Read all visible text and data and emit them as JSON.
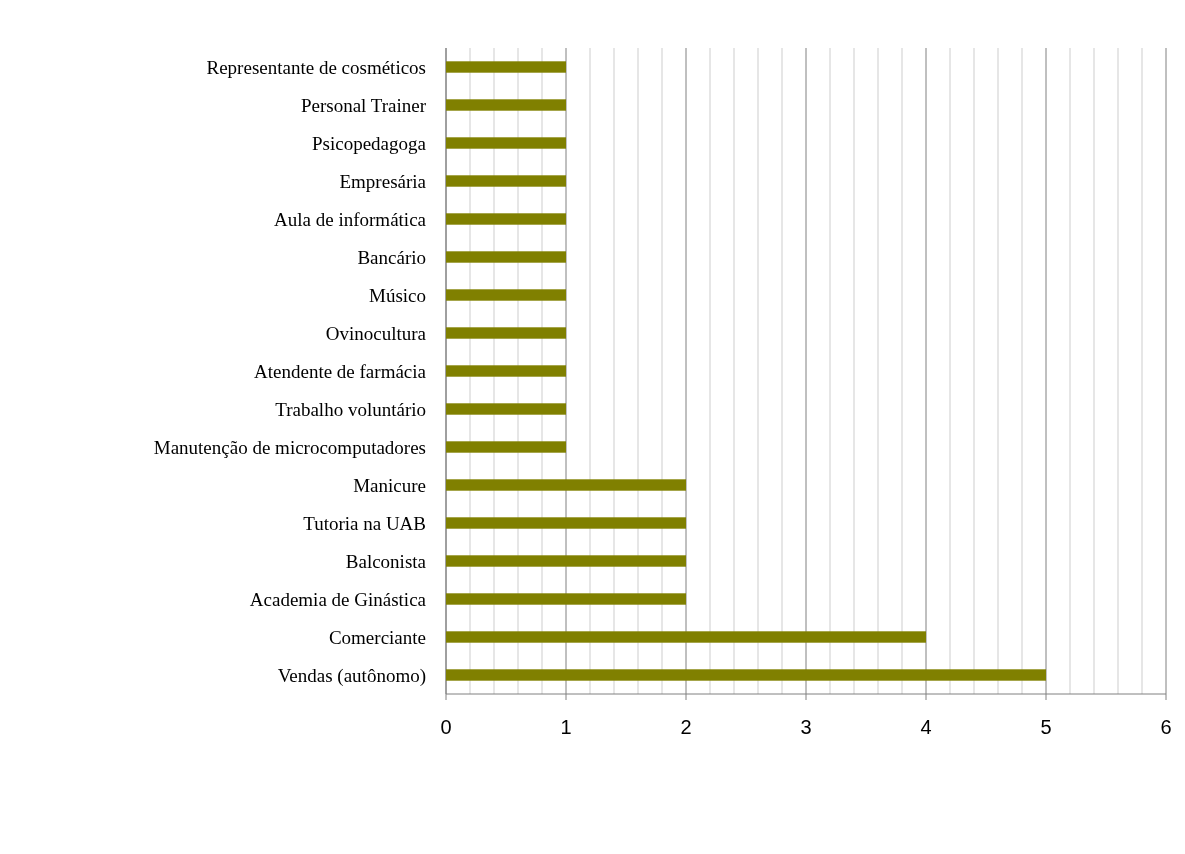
{
  "chart_data": {
    "type": "bar",
    "orientation": "horizontal",
    "categories": [
      "Representante de cosméticos",
      "Personal Trainer",
      "Psicopedagoga",
      "Empresária ",
      "Aula de informática",
      "Bancário",
      "Músico",
      "Ovinocultura",
      "Atendente de farmácia",
      "Trabalho voluntário",
      "Manutenção de microcomputadores",
      "Manicure",
      "Tutoria na UAB",
      "Balconista",
      "Academia de Ginástica",
      "Comerciante",
      "Vendas (autônomo)"
    ],
    "series": [
      {
        "color": "#808000",
        "values": [
          1,
          1,
          1,
          1,
          1,
          1,
          1,
          1,
          1,
          1,
          1,
          2,
          2,
          2,
          2,
          4,
          5
        ]
      }
    ],
    "xlim": [
      0,
      6
    ],
    "xticks": [
      0,
      {
        "value": 0.2,
        "label": null
      },
      {
        "value": 0.4,
        "label": null
      },
      {
        "value": 0.6,
        "label": null
      },
      {
        "value": 0.8,
        "label": null
      },
      1,
      {
        "value": 1.2,
        "label": null
      },
      {
        "value": 1.4,
        "label": null
      },
      {
        "value": 1.6,
        "label": null
      },
      {
        "value": 1.8,
        "label": null
      },
      2,
      {
        "value": 2.2,
        "label": null
      },
      {
        "value": 2.4,
        "label": null
      },
      {
        "value": 2.6,
        "label": null
      },
      {
        "value": 2.8,
        "label": null
      },
      3,
      {
        "value": 3.2,
        "label": null
      },
      {
        "value": 3.4,
        "label": null
      },
      {
        "value": 3.6,
        "label": null
      },
      {
        "value": 3.8,
        "label": null
      },
      4,
      {
        "value": 4.2,
        "label": null
      },
      {
        "value": 4.4,
        "label": null
      },
      {
        "value": 4.6,
        "label": null
      },
      {
        "value": 4.8,
        "label": null
      },
      5,
      {
        "value": 5.2,
        "label": null
      },
      {
        "value": 5.4,
        "label": null
      },
      {
        "value": 5.6,
        "label": null
      },
      {
        "value": 5.8,
        "label": null
      },
      6
    ],
    "grid": "x"
  }
}
